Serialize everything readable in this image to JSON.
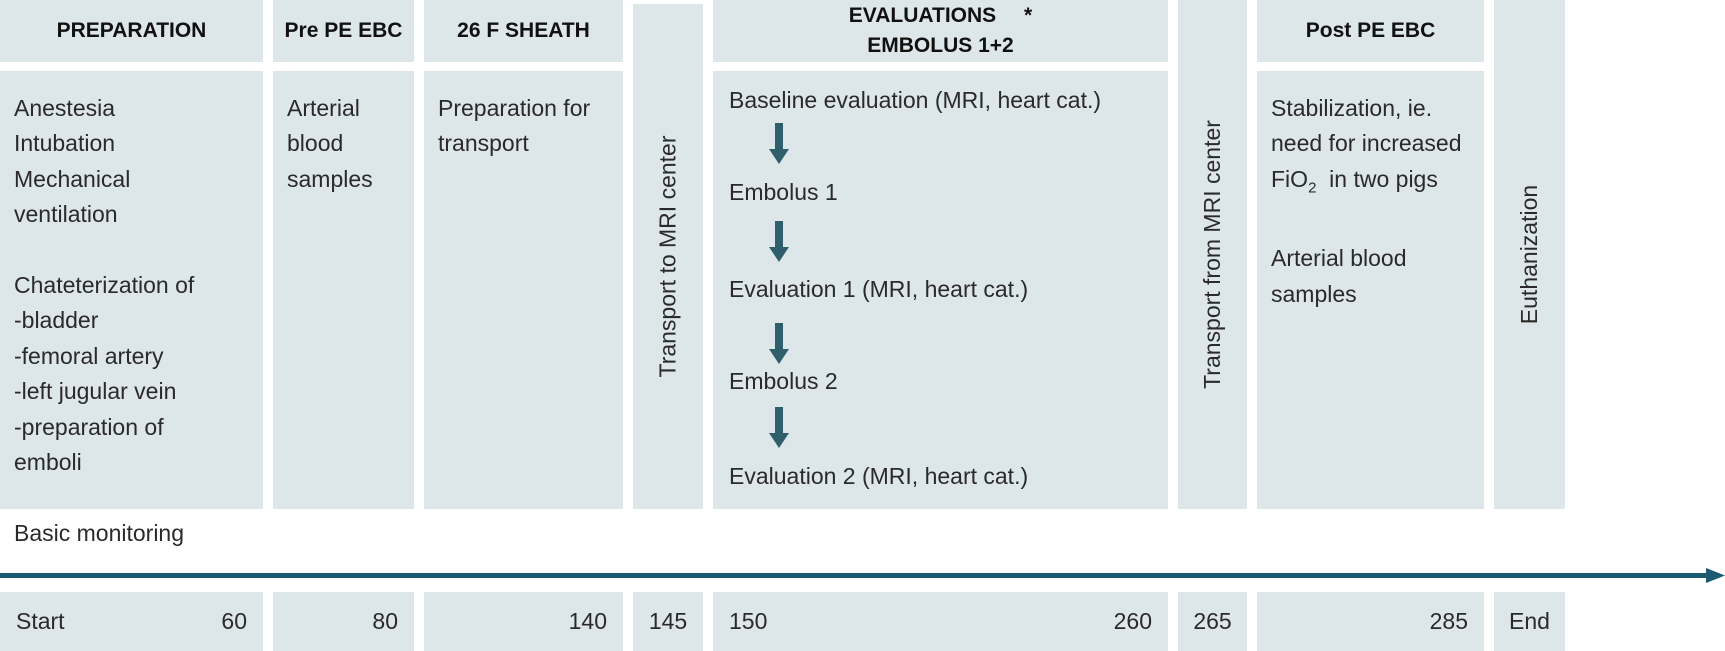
{
  "headers": {
    "preparation": "PREPARATION",
    "pre_pe_ebc": "Pre PE EBC",
    "sheath": "26 F SHEATH",
    "evaluations_line1": "EVALUATIONS",
    "evaluations_star": "*",
    "evaluations_line2": "EMBOLUS 1+2",
    "post_pe_ebc": "Post PE EBC"
  },
  "preparation_items": [
    "Anestesia",
    "Intubation",
    "Mechanical",
    "ventilation",
    "Chateterization of",
    "-bladder",
    "-femoral artery",
    "-left jugular vein",
    "-preparation of",
    "emboli",
    "Basic monitoring"
  ],
  "pre_pe_items": [
    "Arterial",
    "blood",
    "samples"
  ],
  "sheath_items": [
    "Preparation for",
    "transport"
  ],
  "transport_to": "Transport to MRI center",
  "transport_from": "Transport from MRI center",
  "euthanization": "Euthanization",
  "evaluation_steps": [
    "Baseline evaluation (MRI, heart cat.)",
    "Embolus 1",
    "Evaluation 1 (MRI, heart cat.)",
    "Embolus 2",
    "Evaluation 2 (MRI, heart cat.)"
  ],
  "post_pe_items": {
    "line1": "Stabilization, ie.",
    "line2": "need for increased",
    "line3_pre": "FiO",
    "line3_sub": "2",
    "line3_post": "  in two pigs",
    "line4": "Arterial blood",
    "line5": "samples"
  },
  "timeline_labels": {
    "start": "Start",
    "t60": "60",
    "t80": "80",
    "t140": "140",
    "t145": "145",
    "t150": "150",
    "t260": "260",
    "t265": "265",
    "t285": "285",
    "end": "End"
  },
  "colors": {
    "box": "#dde6e9",
    "arrow": "#2f5f6d",
    "timeline": "#1b5a70"
  }
}
